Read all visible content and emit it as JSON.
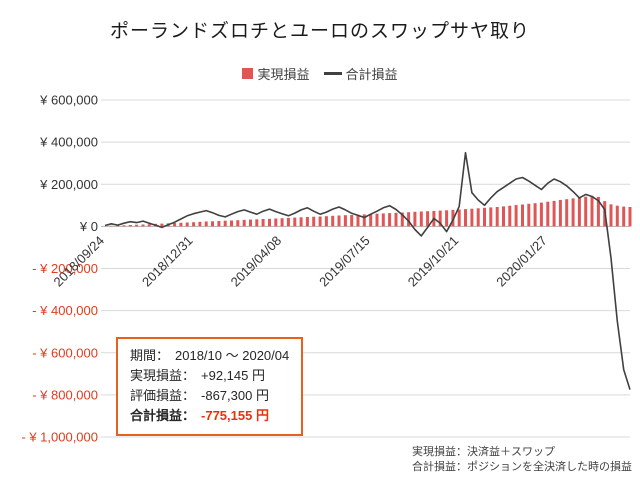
{
  "title": "ポーランドズロチとユーロのスワップサヤ取り",
  "legend": {
    "items": [
      {
        "label": "実現損益",
        "marker": "square"
      },
      {
        "label": "合計損益",
        "marker": "line"
      }
    ]
  },
  "colors": {
    "bar": "#e05656",
    "line": "#404040",
    "grid": "#d9d9d9",
    "zero_axis": "#b3b3b3",
    "negative_label": "#e03c1e",
    "box_border": "#e8611c",
    "total_value": "#e8320c"
  },
  "chart_data": {
    "type": "combo",
    "x_unit": "week",
    "x_tick_positions": [
      0,
      14,
      28,
      42,
      56,
      70
    ],
    "x_tick_labels": [
      "2018/09/24",
      "2018/12/31",
      "2019/04/08",
      "2019/07/15",
      "2019/10/21",
      "2020/01/27"
    ],
    "y_axis": {
      "min": -1000000,
      "max": 600000,
      "step": 200000,
      "tick_labels": [
        "¥ 600,000",
        "¥ 400,000",
        "¥ 200,000",
        "¥ 0",
        "- ¥ 200,000",
        "- ¥ 400,000",
        "- ¥ 600,000",
        "- ¥ 800,000",
        "- ¥ 1,000,000"
      ]
    },
    "series": [
      {
        "name": "実現損益",
        "type": "bar",
        "values": [
          1500,
          2500,
          4000,
          5000,
          6500,
          8000,
          9000,
          10500,
          12000,
          13000,
          14500,
          16000,
          17000,
          18500,
          20000,
          21500,
          23000,
          24000,
          25500,
          27000,
          28000,
          29500,
          31000,
          32000,
          33500,
          35000,
          36000,
          37500,
          39000,
          40000,
          41500,
          43000,
          44500,
          46000,
          47000,
          48500,
          50000,
          51500,
          53000,
          54000,
          55500,
          57000,
          58500,
          60000,
          61500,
          63000,
          64500,
          66000,
          67500,
          69000,
          70500,
          72000,
          73500,
          75000,
          76500,
          78000,
          80000,
          82000,
          84000,
          86000,
          88000,
          90000,
          92000,
          95000,
          98000,
          101000,
          104000,
          107000,
          110000,
          113000,
          117000,
          121000,
          125000,
          129000,
          133000,
          137000,
          141000,
          145000,
          140000,
          120000,
          105000,
          98000,
          94000,
          92145
        ]
      },
      {
        "name": "合計損益",
        "type": "line",
        "values": [
          4000,
          12000,
          6000,
          15000,
          22000,
          18000,
          25000,
          15000,
          5000,
          -5000,
          8000,
          20000,
          35000,
          50000,
          60000,
          68000,
          75000,
          65000,
          52000,
          45000,
          58000,
          70000,
          78000,
          68000,
          58000,
          72000,
          82000,
          70000,
          60000,
          50000,
          63000,
          78000,
          88000,
          72000,
          58000,
          68000,
          82000,
          92000,
          78000,
          62000,
          52000,
          42000,
          58000,
          72000,
          88000,
          98000,
          80000,
          55000,
          25000,
          -15000,
          -45000,
          -5000,
          38000,
          15000,
          -25000,
          30000,
          95000,
          350000,
          160000,
          125000,
          100000,
          135000,
          165000,
          185000,
          205000,
          225000,
          232000,
          215000,
          195000,
          175000,
          205000,
          225000,
          212000,
          192000,
          165000,
          135000,
          152000,
          142000,
          122000,
          80000,
          -150000,
          -450000,
          -680000,
          -775155
        ]
      }
    ]
  },
  "annotation": {
    "lines": [
      {
        "label": "期間：",
        "value": "2018/10 ～ 2020/04",
        "emphasis": false
      },
      {
        "label": "実現損益：",
        "value": "+92,145 円",
        "emphasis": false
      },
      {
        "label": "評価損益：",
        "value": "-867,300 円",
        "emphasis": false
      },
      {
        "label": "合計損益：",
        "value": "-775,155 円",
        "emphasis": true
      }
    ]
  },
  "footnote": {
    "lines": [
      "実現損益：決済益＋スワップ",
      "合計損益：ポジションを全決済した時の損益"
    ]
  }
}
